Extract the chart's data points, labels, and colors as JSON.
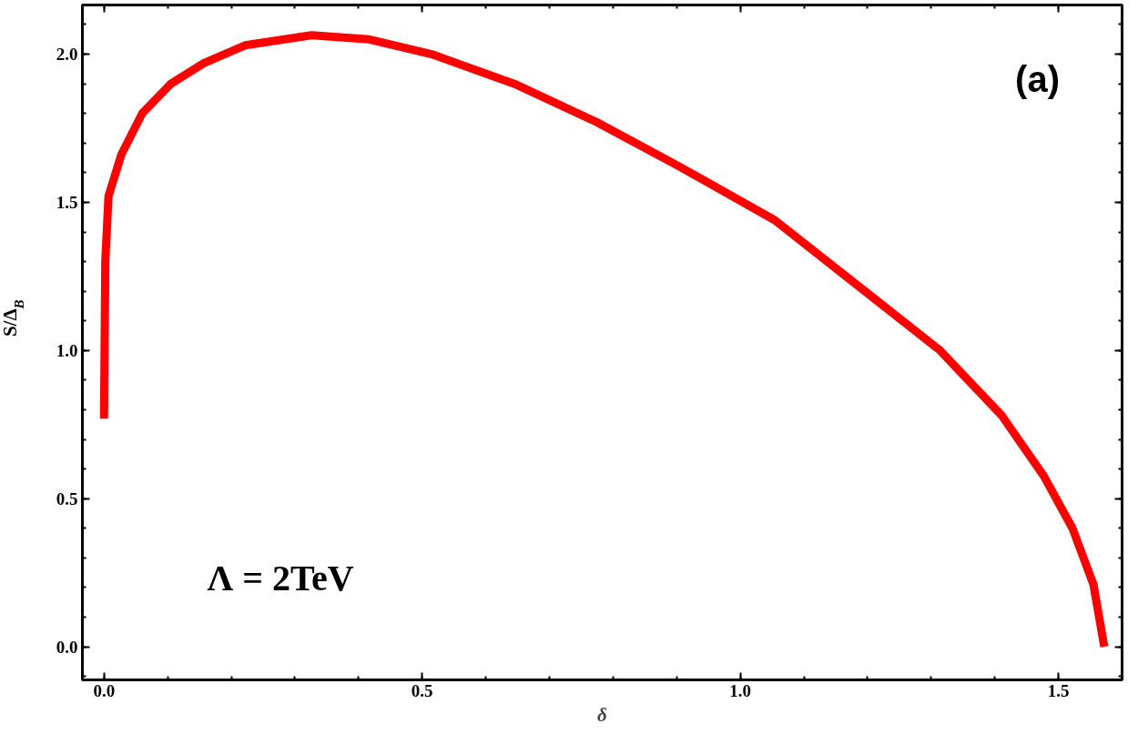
{
  "chart_data": {
    "type": "line",
    "xlabel": "δ",
    "ylabel": "S/Δ$_{B}$",
    "xlim": [
      -0.034,
      1.6
    ],
    "ylim": [
      -0.112,
      2.166
    ],
    "xticks": [
      {
        "value": 0,
        "label": "0.0"
      },
      0.5,
      {
        "value": 1,
        "label": "1.0"
      },
      1.5
    ],
    "yticks": [
      {
        "value": 0,
        "label": "0.0"
      },
      0.5,
      {
        "value": 1,
        "label": "1.0"
      },
      1.5,
      {
        "value": 2,
        "label": "2.0"
      }
    ],
    "series": [
      {
        "color": "#ff0000",
        "x": [
          0,
          0.002,
          0.007,
          0.027,
          0.06,
          0.105,
          0.157,
          0.222,
          0.326,
          0.417,
          0.515,
          0.645,
          0.775,
          0.905,
          1.054,
          1.184,
          1.314,
          1.411,
          1.477,
          1.522,
          1.555,
          1.572
        ],
        "values": [
          0.77,
          1.3,
          1.52,
          1.66,
          1.8,
          1.9,
          1.97,
          2.03,
          2.064,
          2.05,
          2.0,
          1.9,
          1.77,
          1.62,
          1.44,
          1.22,
          1.0,
          0.78,
          0.576,
          0.4,
          0.21,
          0.0
        ]
      }
    ],
    "annotations": [
      "(a)",
      "Λ = 2TeV"
    ],
    "grid": false
  }
}
